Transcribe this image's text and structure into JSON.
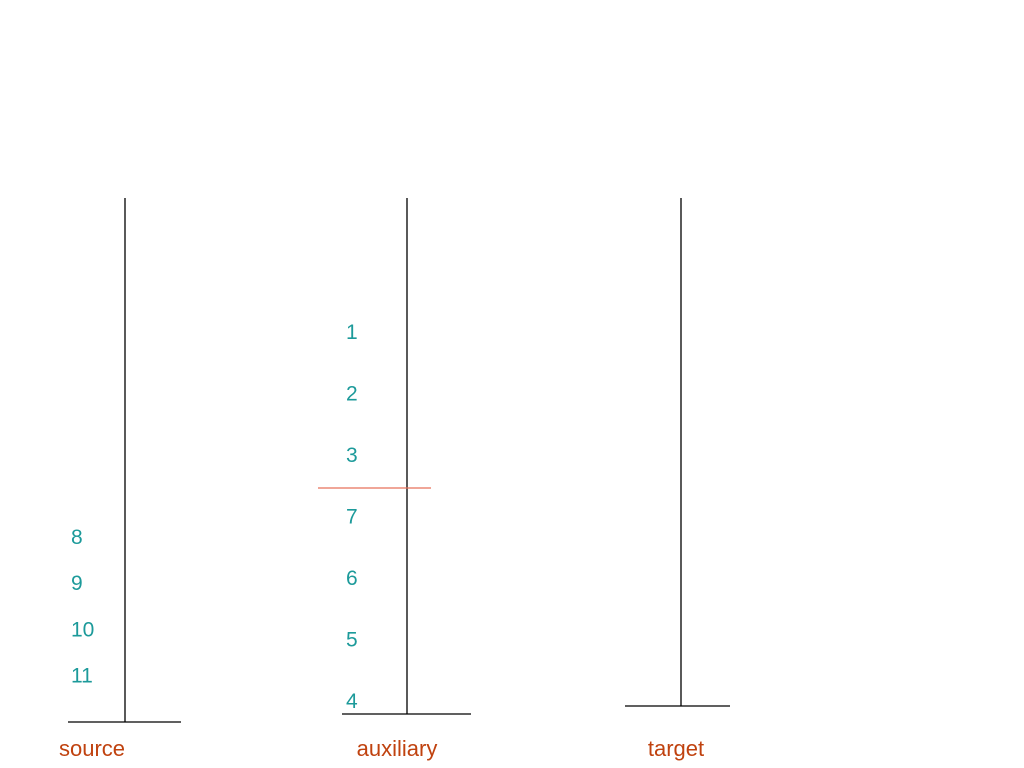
{
  "pegs": [
    {
      "label": "source",
      "items": [
        8,
        9,
        10,
        11
      ]
    },
    {
      "label": "auxiliary",
      "items": [
        1,
        2,
        3,
        7,
        6,
        5,
        4
      ]
    },
    {
      "label": "target"
    }
  ]
}
